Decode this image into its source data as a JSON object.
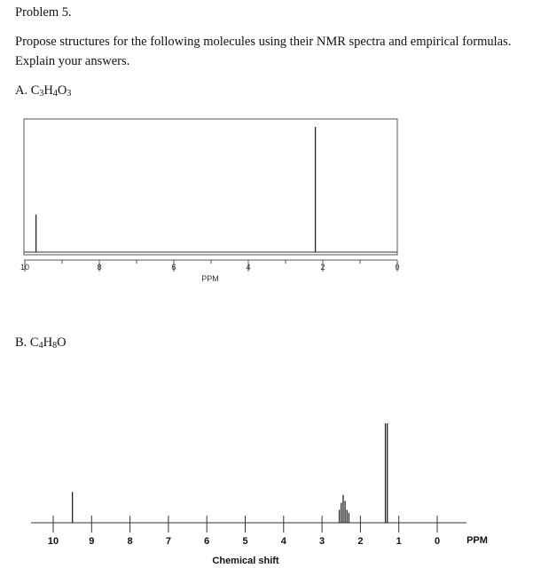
{
  "problem": {
    "title": "Problem 5.",
    "instruction_line1": "Propose structures for the following molecules using their NMR spectra and empirical formulas.",
    "instruction_line2": "Explain your answers."
  },
  "part_a": {
    "prefix": "A. ",
    "formula": [
      {
        "el": "C",
        "n": "3"
      },
      {
        "el": "H",
        "n": "4"
      },
      {
        "el": "O",
        "n": "3"
      }
    ]
  },
  "part_b": {
    "prefix": "B. ",
    "formula": [
      {
        "el": "C",
        "n": "4"
      },
      {
        "el": "H",
        "n": "8"
      },
      {
        "el": "O",
        "n": ""
      }
    ]
  },
  "chart_data": [
    {
      "type": "line",
      "title": "",
      "xlabel": "PPM",
      "ylabel": "",
      "xlim": [
        10,
        0
      ],
      "x_reversed": true,
      "tick_labels": [
        "10",
        "8",
        "6",
        "4",
        "2",
        "0"
      ],
      "tick_values": [
        10,
        8,
        6,
        4,
        2,
        0
      ],
      "peaks": [
        {
          "ppm": 9.7,
          "height": 0.3
        },
        {
          "ppm": 2.2,
          "height": 1.0
        }
      ]
    },
    {
      "type": "line",
      "title": "",
      "xlabel": "Chemical shift",
      "unit_label": "PPM",
      "ylabel": "",
      "xlim": [
        10.5,
        -0.5
      ],
      "x_reversed": true,
      "tick_labels": [
        "10",
        "9",
        "8",
        "7",
        "6",
        "5",
        "4",
        "3",
        "2",
        "1",
        "0"
      ],
      "tick_values": [
        10,
        9,
        8,
        7,
        6,
        5,
        4,
        3,
        2,
        1,
        0
      ],
      "peaks": [
        {
          "ppm": 9.5,
          "height": 0.31
        },
        {
          "ppm": 2.55,
          "height": 0.13
        },
        {
          "ppm": 2.5,
          "height": 0.2
        },
        {
          "ppm": 2.45,
          "height": 0.28
        },
        {
          "ppm": 2.4,
          "height": 0.22
        },
        {
          "ppm": 2.35,
          "height": 0.13
        },
        {
          "ppm": 2.3,
          "height": 0.1
        },
        {
          "ppm": 1.35,
          "height": 1.0
        },
        {
          "ppm": 1.3,
          "height": 1.0
        }
      ]
    }
  ]
}
